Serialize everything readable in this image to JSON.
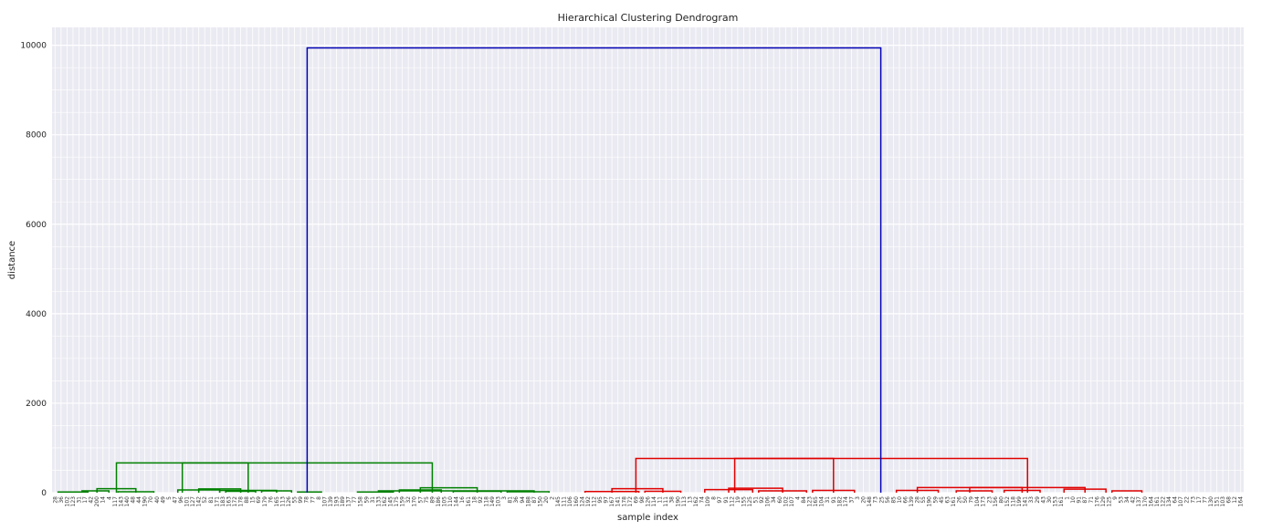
{
  "chart_data": {
    "type": "dendrogram",
    "title": "Hierarchical Clustering Dendrogram",
    "xlabel": "sample index",
    "ylabel": "distance",
    "ylim": [
      0,
      10400
    ],
    "yticks": [
      "0",
      "2000",
      "4000",
      "6000",
      "8000",
      "10000"
    ],
    "ytick_values": [
      0,
      2000,
      4000,
      6000,
      8000,
      10000
    ],
    "grid": true,
    "background_color": "#EAEAF2",
    "colors": {
      "root": "#0000B3",
      "cluster_1": "#008000",
      "cluster_2": "#E00000"
    },
    "leaves": [
      "28",
      "36",
      "102",
      "123",
      "31",
      "17",
      "42",
      "200",
      "14",
      "4",
      "117",
      "143",
      "140",
      "48",
      "44",
      "190",
      "70",
      "40",
      "49",
      "5",
      "47",
      "96",
      "101",
      "127",
      "142",
      "52",
      "81",
      "171",
      "183",
      "163",
      "172",
      "178",
      "88",
      "15",
      "69",
      "179",
      "76",
      "165",
      "113",
      "126",
      "55",
      "99",
      "78",
      "77",
      "8",
      "107",
      "139",
      "193",
      "189",
      "137",
      "77",
      "158",
      "59",
      "31",
      "133",
      "162",
      "145",
      "175",
      "159",
      "32",
      "170",
      "57",
      "75",
      "89",
      "186",
      "105",
      "110",
      "144",
      "16",
      "161",
      "18",
      "92",
      "118",
      "149",
      "103",
      "3",
      "81",
      "36",
      "94",
      "188",
      "87",
      "150",
      "20",
      "2",
      "145",
      "111",
      "106",
      "160",
      "124",
      "192",
      "112",
      "95",
      "97",
      "167",
      "141",
      "178",
      "172",
      "69",
      "98",
      "126",
      "114",
      "11",
      "111",
      "38",
      "190",
      "113",
      "13",
      "162",
      "74",
      "109",
      "8",
      "97",
      "91",
      "112",
      "19",
      "155",
      "125",
      "51",
      "92",
      "106",
      "34",
      "60",
      "102",
      "107",
      "4",
      "84",
      "123",
      "165",
      "104",
      "31",
      "91",
      "182",
      "174",
      "37",
      "3",
      "20",
      "148",
      "73",
      "25",
      "56",
      "85",
      "10",
      "66",
      "139",
      "28",
      "55",
      "190",
      "59",
      "45",
      "63",
      "161",
      "26",
      "50",
      "79",
      "104",
      "173",
      "23",
      "156",
      "80",
      "152",
      "118",
      "199",
      "141",
      "33",
      "29",
      "43",
      "30",
      "153",
      "161",
      "1",
      "10",
      "91",
      "87",
      "71",
      "176",
      "129",
      "125",
      "9",
      "53",
      "34",
      "42",
      "137",
      "170",
      "164",
      "161",
      "122",
      "134",
      "64",
      "107",
      "22",
      "73",
      "17",
      "77",
      "130",
      "151",
      "103",
      "68",
      "12",
      "164"
    ],
    "merges": [
      {
        "left": 0.5,
        "right": 5.5,
        "height": 15,
        "cluster": "cluster_1"
      },
      {
        "left": 4.5,
        "right": 9.0,
        "height": 40,
        "cluster": "cluster_1"
      },
      {
        "left": 10.5,
        "right": 16.5,
        "height": 20,
        "cluster": "cluster_1"
      },
      {
        "left": 7.0,
        "right": 13.5,
        "height": 90,
        "cluster": "cluster_1"
      },
      {
        "left": 20.5,
        "right": 27.5,
        "height": 60,
        "cluster": "cluster_1"
      },
      {
        "left": 28.5,
        "right": 33.5,
        "height": 30,
        "cluster": "cluster_1"
      },
      {
        "left": 24.0,
        "right": 31.0,
        "height": 85,
        "cluster": "cluster_1"
      },
      {
        "left": 34.5,
        "right": 39.5,
        "height": 40,
        "cluster": "cluster_1"
      },
      {
        "left": 27.5,
        "right": 37.0,
        "height": 50,
        "cluster": "cluster_1"
      },
      {
        "left": 40.5,
        "right": 44.5,
        "height": 15,
        "cluster": "cluster_1"
      },
      {
        "left": 10.25,
        "right": 32.25,
        "height": 665,
        "cluster": "cluster_1"
      },
      {
        "left": 50.5,
        "right": 56.5,
        "height": 15,
        "cluster": "cluster_1"
      },
      {
        "left": 57.5,
        "right": 64.5,
        "height": 60,
        "cluster": "cluster_1"
      },
      {
        "left": 66.5,
        "right": 74.5,
        "height": 30,
        "cluster": "cluster_1"
      },
      {
        "left": 61.0,
        "right": 70.5,
        "height": 110,
        "cluster": "cluster_1"
      },
      {
        "left": 75.5,
        "right": 82.5,
        "height": 20,
        "cluster": "cluster_1"
      },
      {
        "left": 54.0,
        "right": 80.0,
        "height": 40,
        "cluster": "cluster_1"
      },
      {
        "left": 21.25,
        "right": 63.0,
        "height": 665,
        "cluster": "cluster_1"
      },
      {
        "left": 88.5,
        "right": 97.5,
        "height": 25,
        "cluster": "cluster_2"
      },
      {
        "left": 98.5,
        "right": 104.5,
        "height": 30,
        "cluster": "cluster_2"
      },
      {
        "left": 93.0,
        "right": 101.5,
        "height": 90,
        "cluster": "cluster_2"
      },
      {
        "left": 108.5,
        "right": 116.5,
        "height": 70,
        "cluster": "cluster_2"
      },
      {
        "left": 117.5,
        "right": 125.5,
        "height": 40,
        "cluster": "cluster_2"
      },
      {
        "left": 112.5,
        "right": 121.5,
        "height": 100,
        "cluster": "cluster_2"
      },
      {
        "left": 126.5,
        "right": 133.5,
        "height": 50,
        "cluster": "cluster_2"
      },
      {
        "left": 97.0,
        "right": 130.0,
        "height": 765,
        "cluster": "cluster_2"
      },
      {
        "left": 140.5,
        "right": 147.5,
        "height": 50,
        "cluster": "cluster_2"
      },
      {
        "left": 150.5,
        "right": 156.5,
        "height": 40,
        "cluster": "cluster_2"
      },
      {
        "left": 158.5,
        "right": 164.5,
        "height": 50,
        "cluster": "cluster_2"
      },
      {
        "left": 144.0,
        "right": 161.5,
        "height": 115,
        "cluster": "cluster_2"
      },
      {
        "left": 168.5,
        "right": 175.5,
        "height": 80,
        "cluster": "cluster_2"
      },
      {
        "left": 176.5,
        "right": 181.5,
        "height": 40,
        "cluster": "cluster_2"
      },
      {
        "left": 152.75,
        "right": 172.0,
        "height": 115,
        "cluster": "cluster_2"
      },
      {
        "left": 113.5,
        "right": 162.4,
        "height": 765,
        "cluster": "cluster_2"
      },
      {
        "left": 42.1,
        "right": 137.9,
        "height": 9940,
        "cluster": "root"
      }
    ]
  }
}
